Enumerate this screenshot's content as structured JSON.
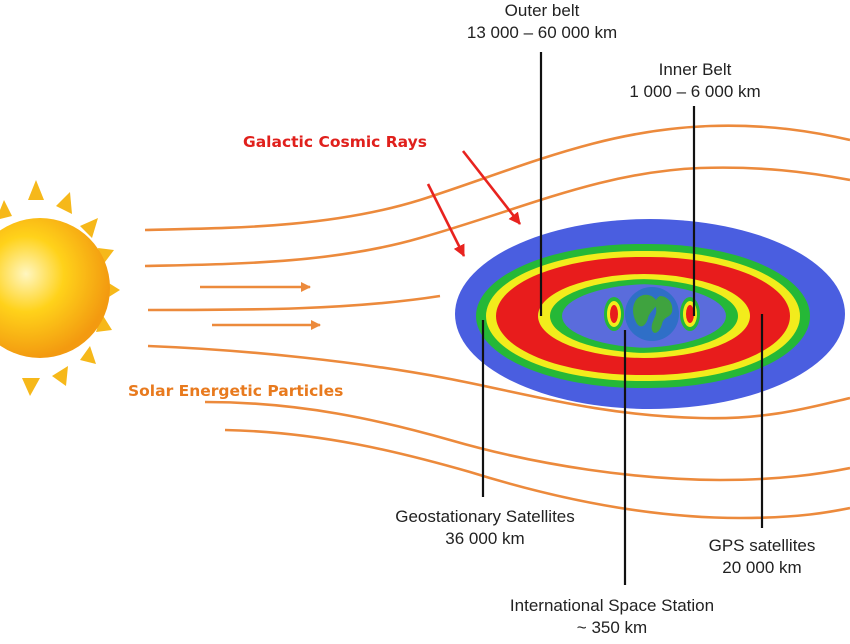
{
  "labels": {
    "galactic_cosmic_rays": "Galactic Cosmic Rays",
    "solar_energetic_particles": "Solar Energetic Particles",
    "outer_belt": {
      "name": "Outer belt",
      "range": "13 000 – 60 000 km"
    },
    "inner_belt": {
      "name": "Inner Belt",
      "range": "1 000 – 6 000 km"
    },
    "geostationary": {
      "name": "Geostationary Satellites",
      "altitude": "36 000 km"
    },
    "iss": {
      "name": "International Space Station",
      "altitude": "~ 350 km"
    },
    "gps": {
      "name": "GPS satellites",
      "altitude": "20 000 km"
    }
  },
  "colors": {
    "solar_wind": "#ec8a3c",
    "cosmic_ray_arrow": "#e8231f",
    "magnetosphere": "#4a5ee0",
    "outer_band": "#25b837",
    "yellow_band": "#f2ec1c",
    "red_band": "#e81c1c",
    "sun_core": "#ffcc1c",
    "earth_ocean": "#2f6fc7",
    "earth_land": "#3fa33f"
  },
  "icons": [
    "sun-icon",
    "earth-icon"
  ]
}
